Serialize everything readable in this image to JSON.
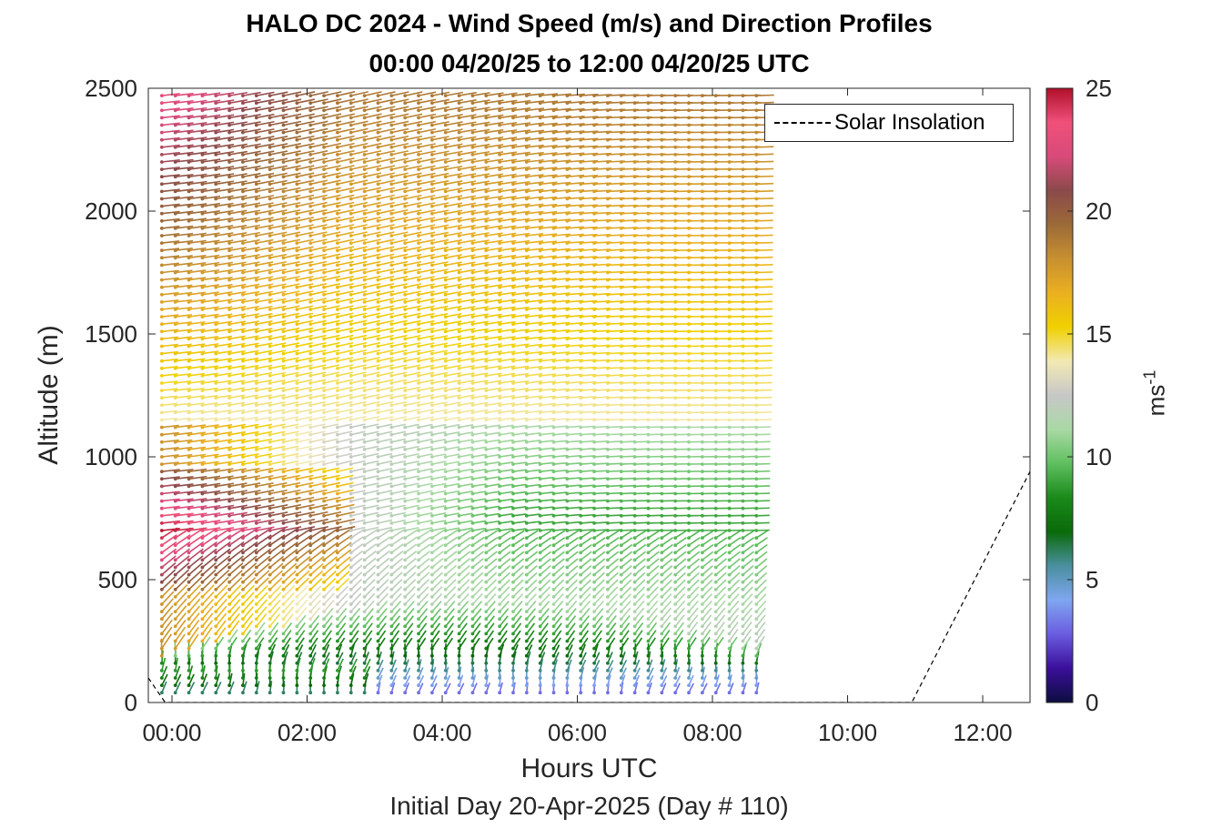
{
  "chart_data": {
    "type": "wind-barb profile",
    "title": "HALO DC 2024 - Wind Speed (m/s) and Direction Profiles",
    "subtitle": "00:00 04/20/25 to 12:00 04/20/25  UTC",
    "xlabel": "Hours UTC",
    "xsublabel": "Initial Day 20-Apr-2025 (Day # 110)",
    "ylabel": "Altitude (m)",
    "xlim": [
      -0.35,
      12.7
    ],
    "ylim": [
      0,
      2500
    ],
    "x_ticks": [
      0,
      2,
      4,
      6,
      8,
      10,
      12
    ],
    "x_tick_labels": [
      "00:00",
      "02:00",
      "04:00",
      "06:00",
      "08:00",
      "10:00",
      "12:00"
    ],
    "y_ticks": [
      0,
      500,
      1000,
      1500,
      2000,
      2500
    ],
    "y_tick_labels": [
      "0",
      "500",
      "1000",
      "1500",
      "2000",
      "2500"
    ],
    "colorbar": {
      "label": "ms",
      "label_exponent": "-1",
      "range": [
        0,
        25
      ],
      "ticks": [
        0,
        5,
        10,
        15,
        20,
        25
      ],
      "tick_labels": [
        "0",
        "5",
        "10",
        "15",
        "20",
        "25"
      ]
    },
    "profile_times_hours": [
      -0.15,
      8.75
    ],
    "profile_interval_hours": 0.2,
    "altitude_gates_m": [
      40,
      2490
    ],
    "altitude_interval_m": 30,
    "legend": {
      "placement": "top-right",
      "entries": [
        "Solar Insolation"
      ]
    },
    "solar_insolation": {
      "x": [
        -0.35,
        -0.1,
        0.0,
        10.95,
        12.7
      ],
      "y": [
        100,
        0,
        0,
        0,
        940
      ]
    }
  },
  "colors": {
    "speed_colormap": [
      "#0d0d40",
      "#3a0f9a",
      "#6a5ce0",
      "#7fa6f0",
      "#4a8fa0",
      "#0a6a0a",
      "#1a8a1a",
      "#5fbf5f",
      "#a9d9a4",
      "#c7c7c7",
      "#f2e9b3",
      "#f0d000",
      "#eab020",
      "#c89030",
      "#9c6a38",
      "#8b4a4a",
      "#d84a7a",
      "#f0507a",
      "#b0102a"
    ],
    "solar_line": "#000000"
  }
}
